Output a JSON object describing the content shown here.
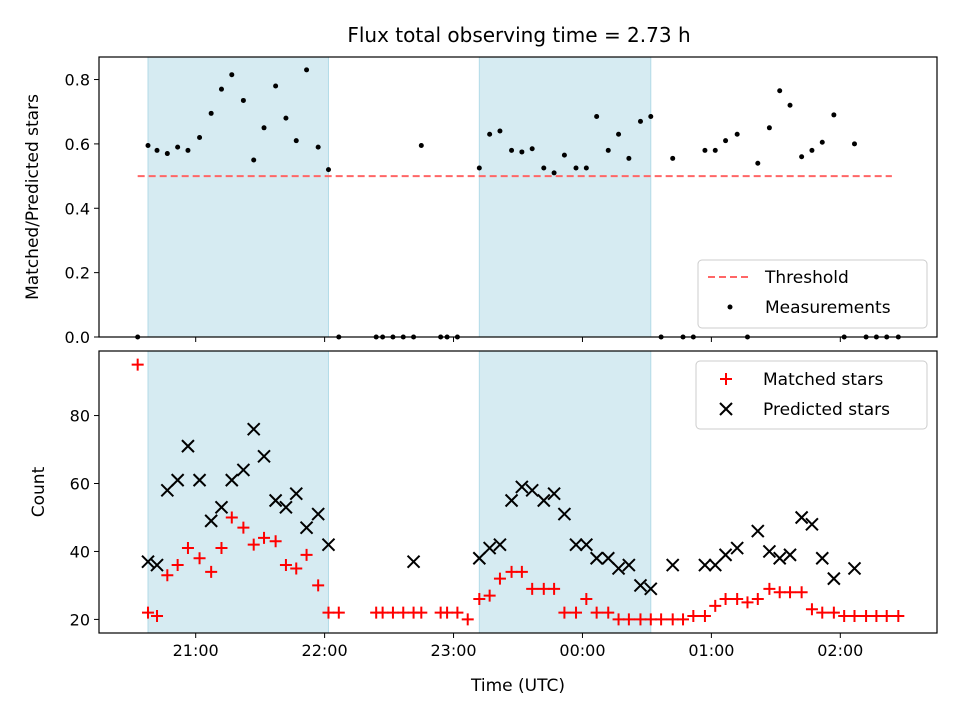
{
  "chart_data": {
    "type": "scatter",
    "title": "Flux total observing time = 2.73 h",
    "xlabel": "Time (UTC)",
    "x_tick_labels": [
      "21:00",
      "22:00",
      "23:00",
      "00:00",
      "01:00",
      "02:00"
    ],
    "x_tick_hours": [
      21,
      22,
      23,
      24,
      25,
      26
    ],
    "xlim_hours": [
      20.25,
      26.75
    ],
    "shaded_intervals_hours": [
      [
        20.63,
        22.03
      ],
      [
        23.2,
        24.53
      ]
    ],
    "colors": {
      "shade": "#add8e6",
      "threshold": "#ff6666",
      "measurements": "#000000",
      "matched": "#ff0000",
      "predicted": "#000000"
    },
    "panels": [
      {
        "ylabel": "Matched/Predicted stars",
        "ylim": [
          0,
          0.87
        ],
        "y_ticks": [
          "0.0",
          "0.2",
          "0.4",
          "0.6",
          "0.8"
        ],
        "y_tick_values": [
          0,
          0.2,
          0.4,
          0.6,
          0.8
        ],
        "legend": {
          "placement": "lower-right",
          "entries": [
            "Threshold",
            "Measurements"
          ]
        },
        "threshold": {
          "name": "Threshold",
          "value": 0.5,
          "x_start": 20.55,
          "x_end": 26.4
        },
        "measurements": {
          "name": "Measurements",
          "x": [
            20.55,
            20.63,
            20.7,
            20.78,
            20.86,
            20.94,
            21.03,
            21.12,
            21.2,
            21.28,
            21.37,
            21.45,
            21.53,
            21.62,
            21.7,
            21.78,
            21.86,
            21.95,
            22.03,
            22.11,
            22.4,
            22.45,
            22.53,
            22.61,
            22.69,
            22.75,
            22.9,
            22.95,
            23.03,
            23.2,
            23.28,
            23.36,
            23.45,
            23.53,
            23.61,
            23.7,
            23.78,
            23.86,
            23.95,
            24.03,
            24.11,
            24.2,
            24.28,
            24.36,
            24.45,
            24.53,
            24.61,
            24.7,
            24.78,
            24.86,
            24.95,
            25.03,
            25.11,
            25.2,
            25.28,
            25.36,
            25.45,
            25.53,
            25.61,
            25.7,
            25.78,
            25.86,
            25.95,
            26.03,
            26.11,
            26.2,
            26.28,
            26.36,
            26.45
          ],
          "y": [
            0.0,
            0.595,
            0.58,
            0.57,
            0.59,
            0.58,
            0.62,
            0.695,
            0.77,
            0.815,
            0.735,
            0.55,
            0.65,
            0.78,
            0.68,
            0.61,
            0.83,
            0.59,
            0.52,
            0.0,
            0.0,
            0.0,
            0.0,
            0.0,
            0.0,
            0.595,
            0.0,
            0.0,
            0.0,
            0.525,
            0.63,
            0.64,
            0.58,
            0.575,
            0.585,
            0.525,
            0.51,
            0.565,
            0.525,
            0.525,
            0.685,
            0.58,
            0.63,
            0.555,
            0.67,
            0.685,
            0.0,
            0.555,
            0.0,
            0.0,
            0.58,
            0.58,
            0.61,
            0.63,
            0.0,
            0.54,
            0.65,
            0.765,
            0.72,
            0.56,
            0.58,
            0.605,
            0.69,
            0.0,
            0.6,
            0.0,
            0.0,
            0.0,
            0.0
          ]
        }
      },
      {
        "ylabel": "Count",
        "ylim": [
          16,
          99
        ],
        "y_ticks": [
          "20",
          "40",
          "60",
          "80"
        ],
        "y_tick_values": [
          20,
          40,
          60,
          80
        ],
        "legend": {
          "placement": "upper-right",
          "entries": [
            "Matched stars",
            "Predicted stars"
          ]
        },
        "series": [
          {
            "name": "Matched stars",
            "marker": "+",
            "x": [
              20.55,
              20.63,
              20.7,
              20.78,
              20.86,
              20.94,
              21.03,
              21.12,
              21.2,
              21.28,
              21.37,
              21.45,
              21.53,
              21.62,
              21.7,
              21.78,
              21.86,
              21.95,
              22.03,
              22.11,
              22.4,
              22.45,
              22.53,
              22.61,
              22.69,
              22.75,
              22.9,
              22.95,
              23.03,
              23.11,
              23.2,
              23.28,
              23.36,
              23.45,
              23.53,
              23.61,
              23.7,
              23.78,
              23.86,
              23.95,
              24.03,
              24.11,
              24.2,
              24.28,
              24.36,
              24.45,
              24.53,
              24.61,
              24.7,
              24.78,
              24.86,
              24.95,
              25.03,
              25.11,
              25.2,
              25.28,
              25.36,
              25.45,
              25.53,
              25.61,
              25.7,
              25.78,
              25.86,
              25.95,
              26.03,
              26.11,
              26.2,
              26.28,
              26.36,
              26.45
            ],
            "y": [
              95,
              22,
              21,
              33,
              36,
              41,
              38,
              34,
              41,
              50,
              47,
              42,
              44,
              43,
              36,
              35,
              39,
              30,
              22,
              22,
              22,
              22,
              22,
              22,
              22,
              22,
              22,
              22,
              22,
              20,
              26,
              27,
              32,
              34,
              34,
              29,
              29,
              29,
              22,
              22,
              26,
              22,
              22,
              20,
              20,
              20,
              20,
              20,
              20,
              20,
              21,
              21,
              24,
              26,
              26,
              25,
              26,
              29,
              28,
              28,
              28,
              23,
              22,
              22,
              21,
              21,
              21,
              21,
              21,
              21
            ]
          },
          {
            "name": "Predicted stars",
            "marker": "x",
            "x": [
              20.63,
              20.7,
              20.78,
              20.86,
              20.94,
              21.03,
              21.12,
              21.2,
              21.28,
              21.37,
              21.45,
              21.53,
              21.62,
              21.7,
              21.78,
              21.86,
              21.95,
              22.03,
              22.69,
              23.2,
              23.28,
              23.36,
              23.45,
              23.53,
              23.61,
              23.7,
              23.78,
              23.86,
              23.95,
              24.03,
              24.11,
              24.2,
              24.28,
              24.36,
              24.45,
              24.53,
              24.7,
              24.95,
              25.03,
              25.11,
              25.2,
              25.36,
              25.45,
              25.53,
              25.61,
              25.7,
              25.78,
              25.86,
              25.95,
              26.11
            ],
            "y": [
              37,
              36,
              58,
              61,
              71,
              61,
              49,
              53,
              61,
              64,
              76,
              68,
              55,
              53,
              57,
              47,
              51,
              42,
              37,
              38,
              41,
              42,
              55,
              59,
              58,
              55,
              57,
              51,
              42,
              42,
              38,
              38,
              35,
              36,
              30,
              29,
              36,
              36,
              36,
              39,
              41,
              46,
              40,
              38,
              39,
              50,
              48,
              38,
              32,
              35
            ]
          }
        ]
      }
    ]
  }
}
